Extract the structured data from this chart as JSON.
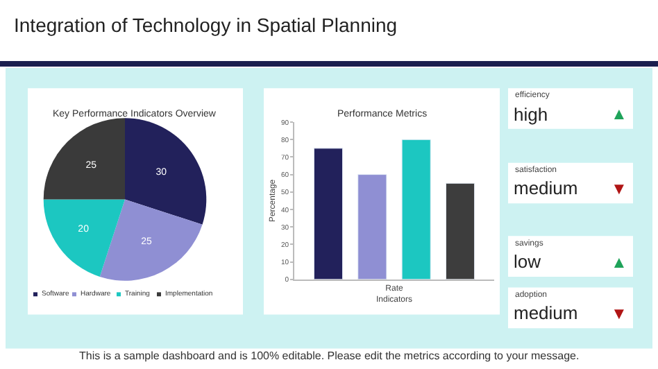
{
  "chart_data": [
    {
      "type": "other",
      "title": "Integration of Technology in Spatial Planning",
      "annotations": [
        "This is a sample dashboard and is 100% editable. Please edit the metrics according to your message."
      ]
    },
    {
      "type": "pie",
      "title": "Key Performance Indicators Overview",
      "categories": [
        "Software",
        "Hardware",
        "Training",
        "Implementation"
      ],
      "values": [
        30,
        25,
        20,
        25
      ],
      "colors": [
        "#22215b",
        "#8f8fd3",
        "#1cc7c1",
        "#3a3a3a"
      ],
      "data_labels": true,
      "legend": "bottom"
    },
    {
      "type": "bar",
      "title": "Performance Metrics",
      "categories": [
        "Rate"
      ],
      "xlabel": "Indicators",
      "ylabel": "Percentage",
      "ylim": [
        0,
        90
      ],
      "yticks": [
        0,
        10,
        20,
        30,
        40,
        50,
        60,
        70,
        80,
        90
      ],
      "grid": false,
      "series": [
        {
          "color": "#22215b",
          "values": [
            75
          ]
        },
        {
          "color": "#8f8fd3",
          "values": [
            60
          ]
        },
        {
          "color": "#1cc7c1",
          "values": [
            80
          ]
        },
        {
          "color": "#3d3d3d",
          "values": [
            55
          ]
        }
      ]
    },
    {
      "type": "other",
      "annotations": [
        "efficiency",
        "high",
        "▲",
        "satisfaction",
        "medium",
        "▼",
        "savings",
        "low",
        "▲",
        "adoption",
        "medium",
        "▼"
      ],
      "colors": [
        "#1fa35a",
        "#b01515",
        "#1fa35a",
        "#b01515"
      ]
    }
  ]
}
